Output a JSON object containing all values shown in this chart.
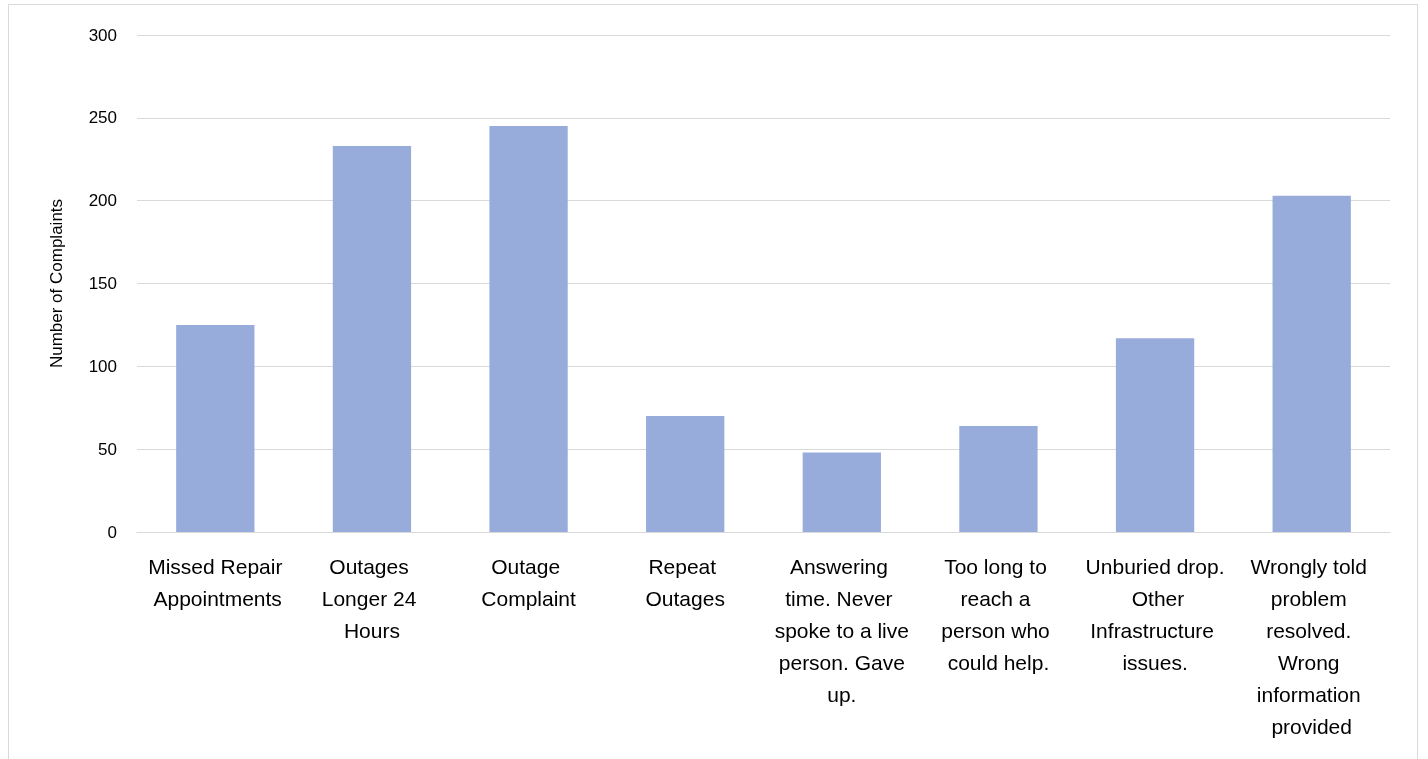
{
  "chart_data": {
    "type": "bar",
    "ylabel": "Number of Complaints",
    "categories": [
      "Missed Repair Appointments",
      "Outages Longer 24 Hours",
      "Outage Complaint",
      "Repeat Outages",
      "Answering time. Never spoke to a live person. Gave up.",
      "Too long to reach a person who could help.",
      "Unburied drop.  Other Infrastructure issues.",
      "Wrongly told problem resolved. Wrong information provided"
    ],
    "values": [
      125,
      233,
      245,
      70,
      48,
      64,
      117,
      203
    ],
    "color": "#98acdc",
    "ylim": [
      0,
      300
    ],
    "yticks": [
      0,
      50,
      100,
      150,
      200,
      250,
      300
    ],
    "grid": "y"
  }
}
